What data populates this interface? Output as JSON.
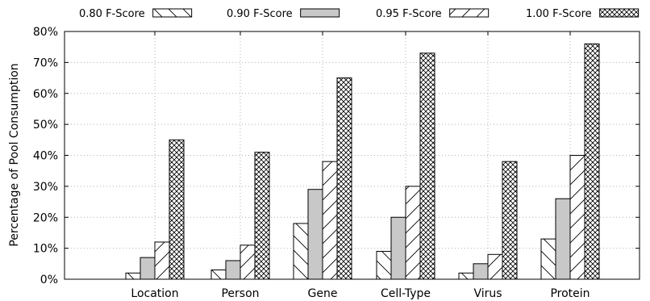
{
  "chart_data": {
    "type": "bar",
    "title": "",
    "xlabel": "",
    "ylabel": "Percentage of Pool Consumption",
    "ylim": [
      0,
      80
    ],
    "yticks": [
      "0%",
      "10%",
      "20%",
      "30%",
      "40%",
      "50%",
      "60%",
      "70%",
      "80%"
    ],
    "grid": true,
    "legend_position": "top",
    "categories": [
      "Location",
      "Person",
      "Gene",
      "Cell-Type",
      "Virus",
      "Protein"
    ],
    "series": [
      {
        "name": "0.80 F-Score",
        "pattern": "back-diagonal-hatch",
        "values": [
          2,
          3,
          18,
          9,
          2,
          13
        ]
      },
      {
        "name": "0.90 F-Score",
        "pattern": "solid-gray",
        "color": "#c8c8c8",
        "values": [
          7,
          6,
          29,
          20,
          5,
          26
        ]
      },
      {
        "name": "0.95 F-Score",
        "pattern": "forward-diagonal-hatch",
        "values": [
          12,
          11,
          38,
          30,
          8,
          40
        ]
      },
      {
        "name": "1.00 F-Score",
        "pattern": "crosshatch",
        "values": [
          45,
          41,
          65,
          73,
          38,
          76
        ]
      }
    ]
  }
}
